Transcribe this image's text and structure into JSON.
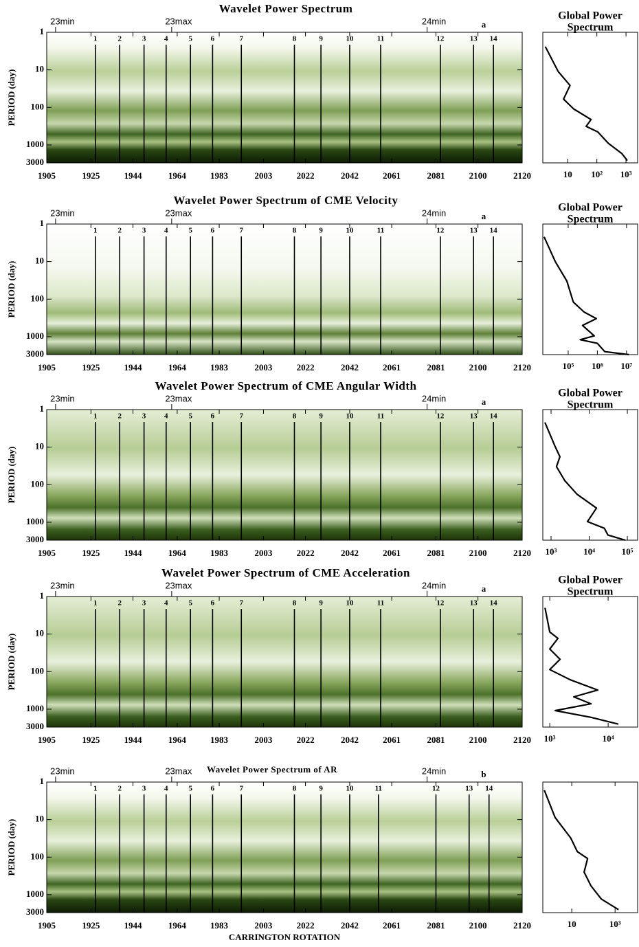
{
  "chart_data": [
    {
      "type": "heatmap",
      "title": "Wavelet Power Spectrum",
      "letter": "a",
      "ylabel": "PERIOD (day)",
      "xlim": [
        1905,
        2120
      ],
      "xticks": [
        1905,
        1925,
        1944,
        1964,
        1983,
        2003,
        2022,
        2042,
        2061,
        2081,
        2100,
        2120
      ],
      "ylim": [
        1,
        3000
      ],
      "yticks": [
        1,
        10,
        100,
        1000,
        3000
      ],
      "ylog": true,
      "cycle_markers": {
        "labels": [
          "23min",
          "23max",
          "24min"
        ],
        "x": [
          1909,
          1961.5,
          2077
        ]
      },
      "event_lines": {
        "labels": [
          "1",
          "2",
          "3",
          "4",
          "5",
          "6",
          "7",
          "8",
          "9",
          "10",
          "11",
          "12",
          "13",
          "14"
        ],
        "x": [
          1927,
          1938,
          1949,
          1959,
          1970,
          1980,
          1993,
          2017,
          2029,
          2042,
          2056,
          2083,
          2098,
          2107
        ]
      },
      "global": {
        "type": "line",
        "title": [
          "Global Power",
          "Spectrum"
        ],
        "xlog": true,
        "xlim": [
          1.4,
          2500
        ],
        "xticks": [
          10,
          {
            "value": 100,
            "label": "10²"
          },
          {
            "value": 1000,
            "label": "10³"
          }
        ],
        "period": [
          2.4,
          11,
          26,
          60,
          110,
          210,
          320,
          450,
          900,
          1700,
          2600
        ],
        "power": [
          1.7,
          4.7,
          12,
          7.2,
          16,
          63,
          43,
          108,
          245,
          720,
          1100
        ]
      }
    },
    {
      "type": "heatmap",
      "title": "Wavelet Power Spectrum of CME Velocity",
      "letter": "a",
      "ylabel": "PERIOD (day)",
      "xlim": [
        1905,
        2120
      ],
      "xticks": [
        1905,
        1925,
        1944,
        1964,
        1983,
        2003,
        2022,
        2042,
        2061,
        2081,
        2100,
        2120
      ],
      "ylim": [
        1,
        3000
      ],
      "yticks": [
        1,
        10,
        100,
        1000,
        3000
      ],
      "ylog": true,
      "cycle_markers": {
        "labels": [
          "23min",
          "23max",
          "24min"
        ],
        "x": [
          1909,
          1961.5,
          2077
        ]
      },
      "event_lines": {
        "labels": [
          "1",
          "2",
          "3",
          "4",
          "5",
          "6",
          "7",
          "8",
          "9",
          "10",
          "11",
          "12",
          "13",
          "14"
        ],
        "x": [
          1927,
          1938,
          1949,
          1959,
          1970,
          1980,
          1993,
          2017,
          2029,
          2042,
          2056,
          2083,
          2098,
          2107
        ]
      },
      "global": {
        "type": "line",
        "title": [
          "Global Power",
          "Spectrum"
        ],
        "xlog": true,
        "xlim": [
          13500,
          24000000
        ],
        "xticks": [
          {
            "value": 100000,
            "label": "10⁵"
          },
          {
            "value": 1000000,
            "label": "10⁶"
          },
          {
            "value": 10000000,
            "label": "10⁷"
          }
        ],
        "period": [
          2.2,
          10,
          33,
          120,
          220,
          330,
          500,
          950,
          1200,
          1500,
          2500,
          3000
        ],
        "power": [
          15000,
          36000,
          90000,
          150000,
          350000,
          920000,
          310000,
          780000,
          260000,
          1000000,
          1800000,
          12000000
        ]
      }
    },
    {
      "type": "heatmap",
      "title": "Wavelet Power Spectrum of CME Angular Width",
      "letter": "a",
      "ylabel": "PERIOD (day)",
      "xlim": [
        1905,
        2120
      ],
      "xticks": [
        1905,
        1925,
        1944,
        1964,
        1983,
        2003,
        2022,
        2042,
        2061,
        2081,
        2100,
        2120
      ],
      "ylim": [
        1,
        3000
      ],
      "yticks": [
        1,
        10,
        100,
        1000,
        3000
      ],
      "ylog": true,
      "cycle_markers": {
        "labels": [
          "23min",
          "23max",
          "24min"
        ],
        "x": [
          1909,
          1961.5,
          2077
        ]
      },
      "event_lines": {
        "labels": [
          "1",
          "2",
          "3",
          "4",
          "5",
          "6",
          "7",
          "8",
          "9",
          "10",
          "11",
          "12",
          "13",
          "14"
        ],
        "x": [
          1927,
          1938,
          1949,
          1959,
          1970,
          1980,
          1993,
          2017,
          2029,
          2042,
          2056,
          2083,
          2098,
          2107
        ]
      },
      "global": {
        "type": "line",
        "title": [
          "Global Power",
          "Spectrum"
        ],
        "xlog": true,
        "xlim": [
          608,
          186000
        ],
        "xticks": [
          {
            "value": 1000,
            "label": "10³"
          },
          {
            "value": 10000,
            "label": "10⁴"
          },
          {
            "value": 100000,
            "label": "10⁵"
          }
        ],
        "period": [
          2.2,
          9.6,
          18,
          33,
          78,
          180,
          420,
          960,
          1450,
          2200,
          3000
        ],
        "power": [
          690,
          1280,
          1710,
          1390,
          2290,
          4800,
          15500,
          9000,
          25000,
          31000,
          88000
        ]
      }
    },
    {
      "type": "heatmap",
      "title": "Wavelet Power Spectrum of CME Acceleration",
      "letter": "a",
      "ylabel": "PERIOD (day)",
      "xlim": [
        1905,
        2120
      ],
      "xticks": [
        1905,
        1925,
        1944,
        1964,
        1983,
        2003,
        2022,
        2042,
        2061,
        2081,
        2100,
        2120
      ],
      "ylim": [
        1,
        3000
      ],
      "yticks": [
        1,
        10,
        100,
        1000,
        3000
      ],
      "ylog": true,
      "cycle_markers": {
        "labels": [
          "23min",
          "23max",
          "24min"
        ],
        "x": [
          1909,
          1961.5,
          2077
        ]
      },
      "event_lines": {
        "labels": [
          "1",
          "2",
          "3",
          "4",
          "5",
          "6",
          "7",
          "8",
          "9",
          "10",
          "11",
          "12",
          "13",
          "14"
        ],
        "x": [
          1927,
          1938,
          1949,
          1959,
          1970,
          1980,
          1993,
          2017,
          2029,
          2042,
          2056,
          2083,
          2098,
          2107
        ]
      },
      "global": {
        "type": "line",
        "title": [
          "Global Power",
          "Spectrum"
        ],
        "xlog": true,
        "xlim": [
          760,
          32000
        ],
        "xticks": [
          {
            "value": 1000,
            "label": "10³"
          },
          {
            "value": 10000,
            "label": "10⁴"
          }
        ],
        "period": [
          2,
          8.8,
          13,
          25,
          47,
          88,
          165,
          310,
          470,
          720,
          1090,
          1650,
          2500
        ],
        "power": [
          828,
          1000,
          1380,
          1000,
          1500,
          1000,
          2250,
          6650,
          2580,
          5090,
          1240,
          5090,
          15000
        ]
      }
    },
    {
      "type": "heatmap",
      "title": "Wavelet Power Spectrum of AR",
      "letter": "b",
      "ylabel": "PERIOD (day)",
      "xlabel": "CARRINGTON ROTATION",
      "xlim": [
        1905,
        2120
      ],
      "xticks": [
        1905,
        1925,
        1944,
        1964,
        1983,
        2003,
        2022,
        2042,
        2061,
        2081,
        2100,
        2120
      ],
      "ylim": [
        1,
        3000
      ],
      "yticks": [
        1,
        10,
        100,
        1000,
        3000
      ],
      "ylog": true,
      "cycle_markers": {
        "labels": [
          "23min",
          "23max",
          "24min"
        ],
        "x": [
          1909,
          1961.5,
          2077
        ]
      },
      "event_lines": {
        "labels": [
          "1",
          "2",
          "3",
          "4",
          "5",
          "6",
          "7",
          "8",
          "9",
          "10",
          "11",
          "12",
          "13",
          "14"
        ],
        "x": [
          1927,
          1938,
          1949,
          1959,
          1970,
          1980,
          1993,
          2017,
          2029,
          2042,
          2055,
          2081,
          2096,
          2105
        ]
      },
      "global": {
        "type": "line",
        "xlog": true,
        "xlim": [
          0.46,
          11000
        ],
        "xticks": [
          10,
          {
            "value": 1000,
            "label": "10³"
          }
        ],
        "period": [
          1.65,
          8.8,
          31,
          71,
          109,
          250,
          580,
          1300,
          2500
        ],
        "power": [
          0.54,
          1.7,
          9,
          18,
          54,
          37,
          77,
          230,
          1450
        ]
      }
    }
  ]
}
